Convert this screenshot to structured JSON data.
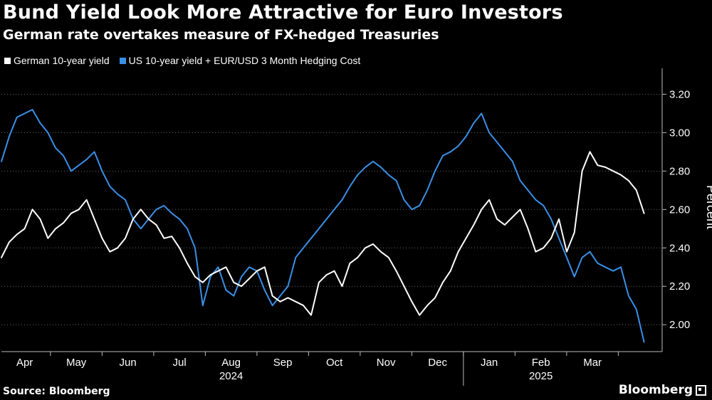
{
  "header": {
    "title": "Bund Yield Look More Attractive for Euro Investors",
    "subtitle": "German rate overtakes measure of FX-hedged Treasuries"
  },
  "legend": [
    {
      "label": "German 10-year yield",
      "color": "#ffffff"
    },
    {
      "label": "US 10-year yield + EUR/USD 3 Month Hedging Cost",
      "color": "#3a8fe6"
    }
  ],
  "footer": {
    "source": "Source: Bloomberg",
    "brand": "Bloomberg"
  },
  "chart_data": {
    "type": "line",
    "title": "Bund Yield Look More Attractive for Euro Investors",
    "ylabel": "Percent",
    "xlabel": "",
    "ylim": [
      1.86,
      3.32
    ],
    "yticks": [
      2.0,
      2.2,
      2.4,
      2.6,
      2.8,
      3.0,
      3.2
    ],
    "ytick_labels": [
      "2.00",
      "2.20",
      "2.40",
      "2.60",
      "2.80",
      "3.00",
      "3.20"
    ],
    "x_range": [
      0,
      12.8
    ],
    "x_month_ticks": [
      {
        "label": "Apr",
        "x": 0.45
      },
      {
        "label": "May",
        "x": 1.45
      },
      {
        "label": "Jun",
        "x": 2.45
      },
      {
        "label": "Jul",
        "x": 3.45
      },
      {
        "label": "Aug",
        "x": 4.45
      },
      {
        "label": "Sep",
        "x": 5.45
      },
      {
        "label": "Oct",
        "x": 6.45
      },
      {
        "label": "Nov",
        "x": 7.45
      },
      {
        "label": "Dec",
        "x": 8.45
      },
      {
        "label": "Jan",
        "x": 9.45
      },
      {
        "label": "Feb",
        "x": 10.45
      },
      {
        "label": "Mar",
        "x": 11.45
      }
    ],
    "x_boundaries": [
      0.95,
      1.95,
      2.95,
      3.95,
      4.95,
      5.95,
      6.95,
      7.95,
      8.95,
      9.95,
      10.95,
      11.95
    ],
    "year_labels": [
      {
        "label": "2024",
        "x": 4.45
      },
      {
        "label": "2025",
        "x": 10.45
      }
    ],
    "year_divider_x": 8.95,
    "series": [
      {
        "name": "German 10-year yield",
        "color": "#ffffff",
        "x": [
          0,
          0.15,
          0.3,
          0.45,
          0.6,
          0.75,
          0.9,
          1.05,
          1.2,
          1.35,
          1.5,
          1.65,
          1.8,
          1.95,
          2.1,
          2.25,
          2.4,
          2.55,
          2.7,
          2.85,
          3.0,
          3.15,
          3.3,
          3.45,
          3.6,
          3.75,
          3.9,
          4.05,
          4.2,
          4.35,
          4.5,
          4.65,
          4.8,
          4.95,
          5.1,
          5.25,
          5.4,
          5.55,
          5.7,
          5.85,
          6.0,
          6.15,
          6.3,
          6.45,
          6.6,
          6.75,
          6.9,
          7.05,
          7.2,
          7.35,
          7.5,
          7.65,
          7.8,
          7.95,
          8.1,
          8.25,
          8.4,
          8.55,
          8.7,
          8.85,
          9.0,
          9.15,
          9.3,
          9.45,
          9.6,
          9.75,
          9.9,
          10.05,
          10.2,
          10.35,
          10.5,
          10.65,
          10.8,
          10.95,
          11.1,
          11.25,
          11.4,
          11.55,
          11.7,
          11.85,
          12.0,
          12.15,
          12.3,
          12.45
        ],
        "values": [
          2.35,
          2.43,
          2.47,
          2.5,
          2.6,
          2.55,
          2.45,
          2.5,
          2.53,
          2.58,
          2.6,
          2.65,
          2.55,
          2.45,
          2.38,
          2.4,
          2.45,
          2.55,
          2.6,
          2.55,
          2.52,
          2.45,
          2.46,
          2.4,
          2.32,
          2.25,
          2.22,
          2.26,
          2.28,
          2.3,
          2.22,
          2.2,
          2.24,
          2.28,
          2.3,
          2.15,
          2.12,
          2.14,
          2.12,
          2.1,
          2.05,
          2.22,
          2.26,
          2.28,
          2.2,
          2.32,
          2.35,
          2.4,
          2.42,
          2.38,
          2.35,
          2.28,
          2.2,
          2.12,
          2.05,
          2.1,
          2.14,
          2.22,
          2.28,
          2.38,
          2.45,
          2.52,
          2.6,
          2.65,
          2.55,
          2.52,
          2.56,
          2.6,
          2.5,
          2.38,
          2.4,
          2.45,
          2.55,
          2.38,
          2.48,
          2.8,
          2.9,
          2.83,
          2.82,
          2.8,
          2.78,
          2.75,
          2.7,
          2.58
        ]
      },
      {
        "name": "US 10-year yield + EUR/USD 3 Month Hedging Cost",
        "color": "#3a8fe6",
        "x": [
          0,
          0.15,
          0.3,
          0.45,
          0.6,
          0.75,
          0.9,
          1.05,
          1.2,
          1.35,
          1.5,
          1.65,
          1.8,
          1.95,
          2.1,
          2.25,
          2.4,
          2.55,
          2.7,
          2.85,
          3.0,
          3.15,
          3.3,
          3.45,
          3.6,
          3.75,
          3.9,
          4.05,
          4.2,
          4.35,
          4.5,
          4.65,
          4.8,
          4.95,
          5.1,
          5.25,
          5.4,
          5.55,
          5.7,
          5.85,
          6.0,
          6.15,
          6.3,
          6.45,
          6.6,
          6.75,
          6.9,
          7.05,
          7.2,
          7.35,
          7.5,
          7.65,
          7.8,
          7.95,
          8.1,
          8.25,
          8.4,
          8.55,
          8.7,
          8.85,
          9.0,
          9.15,
          9.3,
          9.45,
          9.6,
          9.75,
          9.9,
          10.05,
          10.2,
          10.35,
          10.5,
          10.65,
          10.8,
          10.95,
          11.1,
          11.25,
          11.4,
          11.55,
          11.7,
          11.85,
          12.0,
          12.15,
          12.3,
          12.45
        ],
        "values": [
          2.85,
          2.98,
          3.08,
          3.1,
          3.12,
          3.05,
          3.0,
          2.92,
          2.88,
          2.8,
          2.83,
          2.86,
          2.9,
          2.8,
          2.72,
          2.68,
          2.65,
          2.55,
          2.5,
          2.55,
          2.6,
          2.62,
          2.58,
          2.55,
          2.5,
          2.4,
          2.1,
          2.25,
          2.3,
          2.18,
          2.15,
          2.25,
          2.3,
          2.28,
          2.18,
          2.1,
          2.15,
          2.2,
          2.35,
          2.4,
          2.45,
          2.5,
          2.55,
          2.6,
          2.65,
          2.72,
          2.78,
          2.82,
          2.85,
          2.82,
          2.78,
          2.75,
          2.65,
          2.6,
          2.62,
          2.7,
          2.8,
          2.88,
          2.9,
          2.93,
          2.98,
          3.05,
          3.1,
          3.0,
          2.95,
          2.9,
          2.85,
          2.75,
          2.7,
          2.65,
          2.62,
          2.55,
          2.45,
          2.35,
          2.25,
          2.35,
          2.38,
          2.32,
          2.3,
          2.28,
          2.3,
          2.15,
          2.08,
          1.91
        ]
      }
    ]
  }
}
